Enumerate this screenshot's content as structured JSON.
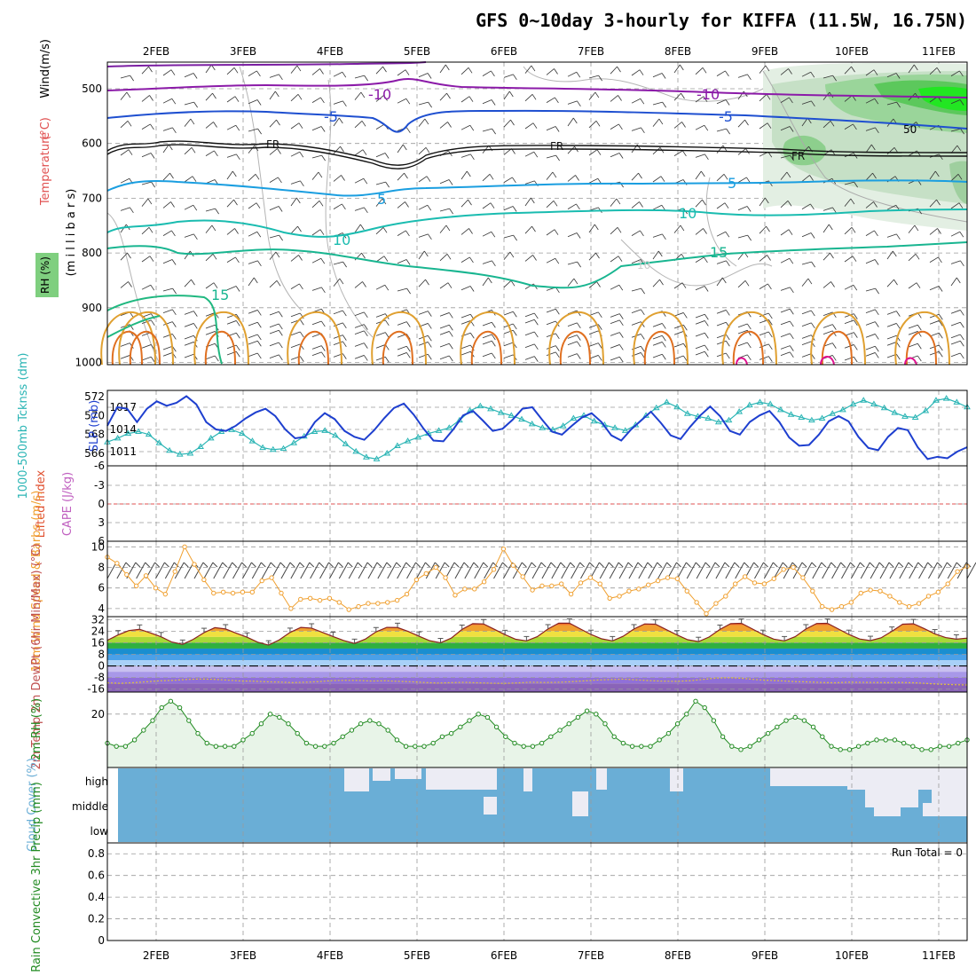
{
  "title": "GFS 0~10day 3-hourly for KIFFA (11.5W, 16.75N)",
  "dates": [
    "2FEB",
    "3FEB",
    "4FEB",
    "5FEB",
    "6FEB",
    "7FEB",
    "8FEB",
    "9FEB",
    "10FEB",
    "11FEB"
  ],
  "colors": {
    "rh": "#36c236",
    "temp_label": "#e05050",
    "wind_label": "#000000",
    "thickness": "#2bb5b5",
    "slp": "#1e3fcf",
    "lifted": "#e05030",
    "cape": "#c060c0",
    "wind10": "#f0a030",
    "rh2m": "#228b22",
    "cloud": "#6aaed6",
    "precip_total": "#228b22",
    "precip_conv": "#e02020"
  },
  "chart_data": [
    {
      "type": "contour",
      "name": "upper-air",
      "ylabels": [
        "Wind",
        "(m/s)",
        "Temperature",
        "(°C)",
        "RH",
        "(%)",
        "(m i l l i b a r s)"
      ],
      "y_ticks": [
        500,
        600,
        700,
        800,
        900,
        1000
      ],
      "ylim": [
        1000,
        450
      ],
      "temperature_lines": [
        {
          "label": "-10",
          "level_approx": 500
        },
        {
          "label": "-5",
          "level_approx": 540
        },
        {
          "label": "FR",
          "level_approx": 610
        },
        {
          "label": "5",
          "level_approx": 680
        },
        {
          "label": "10",
          "level_approx": 740
        },
        {
          "label": "15",
          "level_approx": 790
        }
      ],
      "rh_contour_label": "50"
    },
    {
      "type": "line",
      "name": "thickness-slp",
      "ylabel_left": "1000-500mb Tcknss (dm)",
      "ylabel_right": "SLP (mb)",
      "left_ticks": [
        566,
        568,
        570,
        572
      ],
      "right_ticks": [
        1011,
        1014,
        1017
      ],
      "series": [
        {
          "name": "Thickness",
          "axis": "left",
          "values": [
            567.2,
            567.6,
            568.1,
            568.3,
            568.0,
            567.1,
            566.3,
            565.9,
            566.0,
            566.7,
            567.6,
            568.3,
            568.5,
            568.1,
            567.3,
            566.6,
            566.4,
            566.5,
            567.1,
            567.8,
            568.3,
            568.4,
            567.9,
            567.0,
            566.2,
            565.6,
            565.4,
            566.0,
            566.8,
            567.3,
            567.7,
            568.1,
            568.4,
            568.7,
            569.5,
            570.5,
            571.0,
            570.7,
            570.3,
            570.0,
            569.6,
            569.1,
            568.7,
            568.5,
            568.9,
            569.7,
            570.0,
            569.4,
            569.0,
            568.7,
            568.4,
            569.0,
            570.0,
            570.8,
            571.4,
            570.9,
            570.2,
            569.9,
            569.7,
            569.3,
            569.5,
            570.4,
            571.1,
            571.4,
            571.2,
            570.6,
            570.1,
            569.8,
            569.5,
            569.7,
            570.2,
            570.6,
            571.2,
            571.6,
            571.2,
            570.8,
            570.3,
            569.9,
            569.8,
            570.5,
            571.6,
            571.8,
            571.4,
            570.9
          ]
        },
        {
          "name": "SLP",
          "axis": "right",
          "values": [
            1014.5,
            1017.0,
            1016.8,
            1015.0,
            1016.8,
            1017.8,
            1017.2,
            1017.6,
            1018.5,
            1017.4,
            1015.0,
            1014.0,
            1013.8,
            1014.5,
            1015.5,
            1016.3,
            1016.8,
            1015.8,
            1014.0,
            1012.8,
            1013.0,
            1015.0,
            1016.2,
            1015.4,
            1013.8,
            1013.0,
            1012.6,
            1013.9,
            1015.5,
            1016.9,
            1017.5,
            1016.0,
            1014.1,
            1012.5,
            1012.4,
            1014.0,
            1015.9,
            1016.5,
            1015.2,
            1013.8,
            1014.1,
            1015.3,
            1016.8,
            1017.0,
            1015.3,
            1013.7,
            1013.3,
            1014.5,
            1015.6,
            1016.2,
            1015.0,
            1013.2,
            1012.5,
            1014.0,
            1015.2,
            1016.4,
            1014.9,
            1013.2,
            1012.7,
            1014.4,
            1015.9,
            1017.1,
            1015.8,
            1013.8,
            1013.3,
            1015.0,
            1015.9,
            1016.5,
            1015.0,
            1012.9,
            1011.8,
            1011.9,
            1013.3,
            1015.1,
            1015.8,
            1015.1,
            1013.0,
            1011.5,
            1011.2,
            1013.0,
            1014.2,
            1013.9,
            1011.6,
            1010.0,
            1010.3,
            1010.1,
            1011.0,
            1011.6
          ]
        }
      ]
    },
    {
      "type": "line",
      "name": "lifted-index-cape",
      "ylabel_left": "Lifted Index",
      "ylabel_right": "CAPE (J/kg)",
      "y_ticks": [
        "-6",
        "-3",
        "0",
        "3",
        "6"
      ],
      "reference_line": 0
    },
    {
      "type": "line",
      "name": "wind10m",
      "ylabel": "10m Wind Speed & Barbs (m/s)",
      "y_ticks": [
        4,
        6,
        8,
        10
      ],
      "ylim": [
        3.3,
        10.2
      ],
      "values": [
        9.0,
        8.4,
        7.3,
        6.2,
        7.2,
        6.0,
        5.4,
        7.6,
        10.0,
        8.3,
        6.8,
        5.5,
        5.6,
        5.5,
        5.6,
        5.6,
        6.7,
        7.0,
        5.5,
        4.0,
        4.9,
        5.0,
        4.8,
        5.0,
        4.6,
        3.9,
        4.2,
        4.5,
        4.5,
        4.6,
        4.8,
        5.4,
        6.8,
        7.4,
        8.0,
        7.0,
        5.3,
        5.9,
        5.9,
        6.6,
        7.8,
        9.8,
        8.2,
        7.1,
        5.8,
        6.2,
        6.2,
        6.4,
        5.4,
        6.5,
        7.0,
        6.4,
        5.0,
        5.2,
        5.7,
        5.9,
        6.3,
        6.7,
        7.0,
        6.9,
        5.7,
        4.6,
        3.5,
        4.5,
        5.2,
        6.4,
        7.1,
        6.5,
        6.4,
        6.9,
        7.8,
        8.0,
        7.0,
        5.7,
        4.2,
        3.9,
        4.2,
        4.6,
        5.5,
        5.8,
        5.7,
        5.2,
        4.6,
        4.2,
        4.5,
        5.2,
        5.6,
        6.4,
        7.6,
        8.1
      ]
    },
    {
      "type": "area",
      "name": "temp2m",
      "ylabel": "2m Temp 2m DewPt (6hr Min/Max) (°C)",
      "y_ticks": [
        "32",
        "24",
        "16",
        "8",
        "0",
        "-8",
        "-16"
      ],
      "ylim": [
        -18,
        34
      ],
      "temperature": [
        17.7,
        21.4,
        24.4,
        25.3,
        22.8,
        20.1,
        16.5,
        14.9,
        18.4,
        23.0,
        26.4,
        25.5,
        22.6,
        19.8,
        16.4,
        14.4,
        18.0,
        23.1,
        26.6,
        26.1,
        23.2,
        20.3,
        17.5,
        15.5,
        18.5,
        23.5,
        26.6,
        26.5,
        23.8,
        20.5,
        17.4,
        16.0,
        19.2,
        25.2,
        29.2,
        29.0,
        25.3,
        21.6,
        18.4,
        17.3,
        20.2,
        25.5,
        29.5,
        29.5,
        25.6,
        21.7,
        18.7,
        17.3,
        20.5,
        25.5,
        29.0,
        28.8,
        25.1,
        21.4,
        18.1,
        16.8,
        20.0,
        25.2,
        29.2,
        29.4,
        25.6,
        21.7,
        18.5,
        17.3,
        20.2,
        25.5,
        29.3,
        29.4,
        25.6,
        21.7,
        18.6,
        17.5,
        19.4,
        23.9,
        28.8,
        29.1,
        25.8,
        22.1,
        19.6,
        18.5,
        19.2
      ],
      "dewpoint": [
        -11.6,
        -12.0,
        -11.5,
        -10.9,
        -10.2,
        -9.9,
        -9.3,
        -9.0,
        -9.2,
        -9.7,
        -10.3,
        -10.5,
        -10.9,
        -11.1,
        -11.5,
        -11.2,
        -10.8,
        -10.1,
        -9.9,
        -10.0,
        -10.4,
        -10.2,
        -10.6,
        -10.9,
        -11.4,
        -11.8,
        -11.5,
        -11.3,
        -11.6,
        -11.9,
        -12.0,
        -11.7,
        -11.2,
        -11.4,
        -11.3,
        -10.9,
        -10.3,
        -9.7,
        -9.4,
        -9.1,
        -9.6,
        -10.1,
        -10.5,
        -10.6,
        -10.2,
        -9.3,
        -8.4,
        -8.1,
        -8.5,
        -9.4,
        -9.9,
        -10.3,
        -10.8,
        -11.0,
        -11.4,
        -11.6,
        -11.2,
        -11.3,
        -11.4,
        -11.5,
        -11.4,
        -11.6,
        -12.1,
        -12.6,
        -12.9,
        -13.1
      ]
    },
    {
      "type": "area",
      "name": "rh2m",
      "ylabel": "2m RH (%)",
      "y_ticks": [
        20
      ],
      "ylim": [
        4,
        26
      ],
      "values": [
        11,
        10,
        10,
        12,
        15,
        18,
        22,
        24,
        22,
        18,
        14,
        11,
        10,
        10,
        10,
        12,
        14,
        17,
        20,
        19,
        17,
        14,
        11,
        10,
        10,
        11,
        13,
        15,
        17,
        18,
        17,
        15,
        12,
        10,
        10,
        10,
        11,
        13,
        14,
        16,
        18,
        20,
        19,
        16,
        13,
        11,
        10,
        10,
        11,
        13,
        15,
        17,
        19,
        21,
        20,
        17,
        13,
        11,
        10,
        10,
        10,
        12,
        14,
        17,
        20,
        24,
        22,
        18,
        13,
        10,
        9,
        10,
        12,
        14,
        16,
        18,
        19,
        18,
        16,
        13,
        10,
        9,
        9,
        10,
        11,
        12,
        12,
        12,
        11,
        10,
        9,
        9,
        10,
        10,
        11,
        12
      ]
    },
    {
      "type": "heatmap",
      "name": "cloud-cover",
      "ylabel": "Cloud Cover (%)",
      "rows": [
        "high",
        "middle",
        "low"
      ]
    },
    {
      "type": "bar",
      "name": "precip",
      "ylabel": "Total / Rain Convective 3hr Precip (mm)",
      "y_ticks": [
        "0",
        "0.2",
        "0.4",
        "0.6",
        "0.8"
      ],
      "ylim": [
        0,
        0.9
      ],
      "annotation": "Run Total = 0"
    }
  ]
}
